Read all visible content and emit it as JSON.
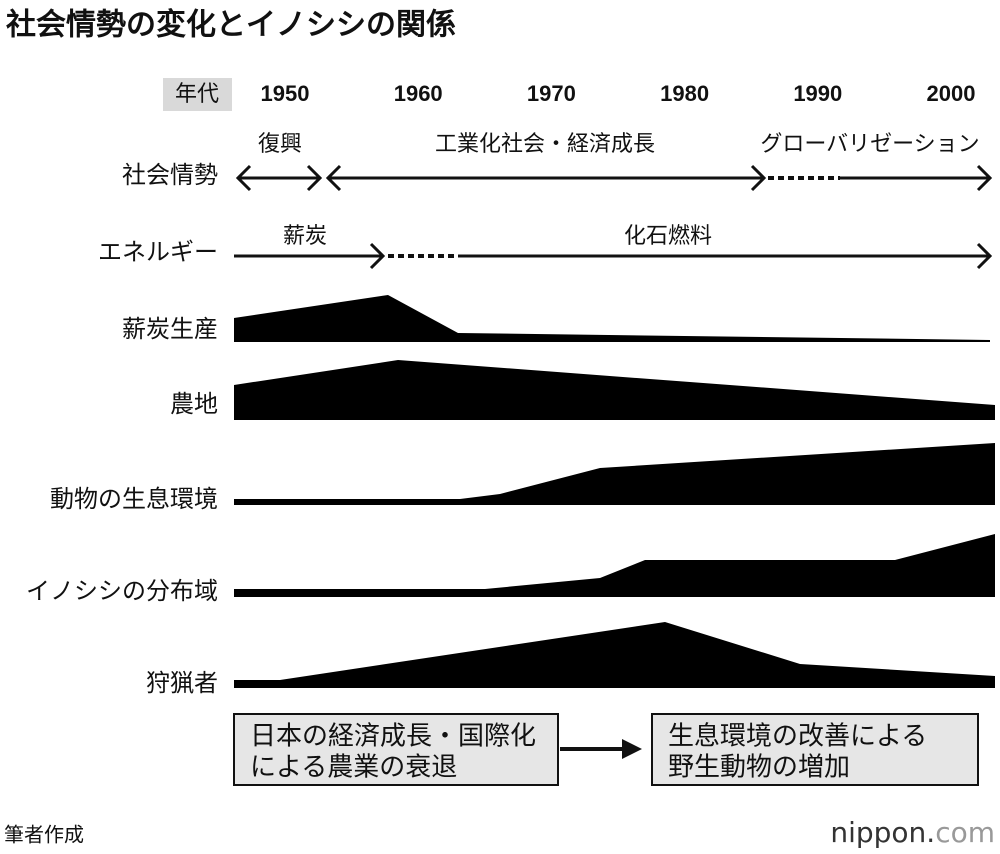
{
  "title": "社会情勢の変化とイノシシの関係",
  "timeline": {
    "label": "年代",
    "years": [
      "1950",
      "1960",
      "1970",
      "1980",
      "1990",
      "2000"
    ]
  },
  "society": {
    "label": "社会情勢",
    "phases": [
      "復興",
      "工業化社会・経済成長",
      "グローバリゼーション"
    ]
  },
  "energy": {
    "label": "エネルギー",
    "phases": [
      "薪炭",
      "化石燃料"
    ]
  },
  "profiles": [
    "薪炭生産",
    "農地",
    "動物の生息環境",
    "イノシシの分布域",
    "狩猟者"
  ],
  "boxes": [
    [
      "日本の経済成長・国際化",
      "による農業の衰退"
    ],
    [
      "生息環境の改善による",
      "野生動物の増加"
    ]
  ],
  "footer": {
    "source": "筆者作成",
    "logo": [
      "nippon.",
      "com"
    ]
  }
}
